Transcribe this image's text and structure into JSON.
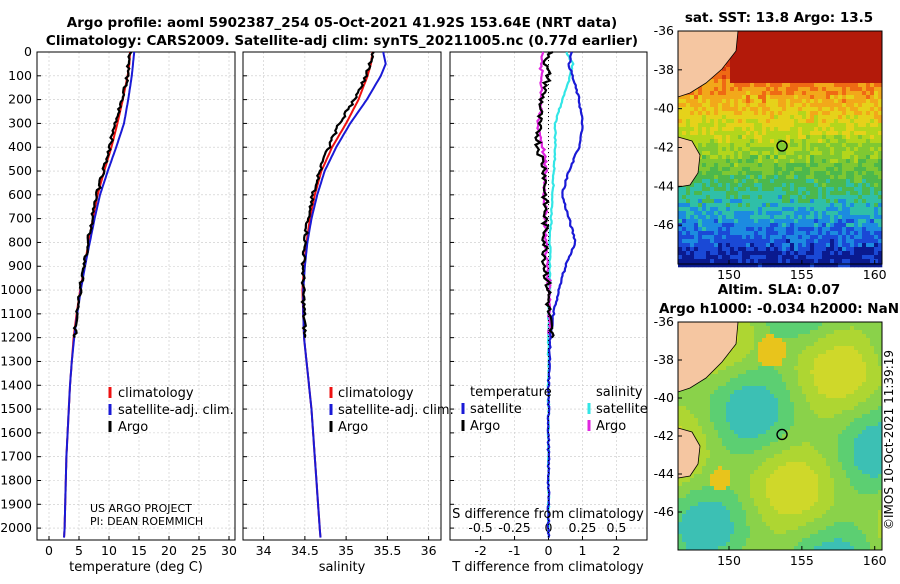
{
  "header": {
    "line1": "Argo profile: aoml 5902387_254 05-Oct-2021 41.92S 153.64E (NRT data)",
    "line2": "Climatology: CARS2009. Satellite-adj clim: synTS_20211005.nc (0.77d earlier)"
  },
  "colors": {
    "climatology": "#ee1111",
    "satellite": "#1a1ad6",
    "argo": "#000000",
    "sat_s": "#33e6e6",
    "argo_s": "#e026e0"
  },
  "chart_data": [
    {
      "id": "temperature",
      "type": "line",
      "xlabel": "temperature (deg C)",
      "ylabel": "",
      "xlim": [
        -2,
        31
      ],
      "ylim": [
        0,
        2050
      ],
      "xticks": [
        "0",
        "5",
        "10",
        "15",
        "20",
        "25",
        "30"
      ],
      "yticks": [
        "0",
        "100",
        "200",
        "300",
        "400",
        "500",
        "600",
        "700",
        "800",
        "900",
        "1000",
        "1100",
        "1200",
        "1300",
        "1400",
        "1500",
        "1600",
        "1700",
        "1800",
        "1900",
        "2000"
      ],
      "legend": [
        "climatology",
        "satellite-adj. clim.",
        "Argo"
      ],
      "annotation": [
        "US ARGO PROJECT",
        "PI: DEAN ROEMMICH"
      ],
      "series": [
        {
          "name": "climatology",
          "depth": [
            0,
            50,
            100,
            200,
            300,
            400,
            500,
            600,
            700,
            800,
            900,
            1000,
            1100,
            1200,
            1300,
            1400,
            1500,
            1600,
            1700,
            1800,
            1900,
            2000,
            2040
          ],
          "values": [
            13.5,
            13.4,
            13.1,
            12.3,
            11.4,
            10.4,
            9.2,
            8.1,
            7.3,
            6.6,
            5.9,
            5.2,
            4.6,
            4.1,
            3.8,
            3.5,
            3.3,
            3.1,
            2.9,
            2.8,
            2.7,
            2.6,
            2.5
          ]
        },
        {
          "name": "satellite-adj. clim.",
          "depth": [
            0,
            50,
            100,
            200,
            300,
            400,
            500,
            600,
            700,
            800,
            900,
            1000,
            1100,
            1200,
            1300,
            1400,
            1500,
            1600,
            1700,
            1800,
            1900,
            2000,
            2040
          ],
          "values": [
            14.2,
            14.0,
            13.8,
            13.2,
            12.5,
            11.2,
            9.8,
            8.5,
            7.6,
            6.8,
            6.0,
            5.3,
            4.7,
            4.2,
            3.8,
            3.5,
            3.3,
            3.1,
            2.9,
            2.8,
            2.7,
            2.6,
            2.5
          ]
        },
        {
          "name": "Argo",
          "depth": [
            0,
            50,
            100,
            200,
            300,
            400,
            500,
            600,
            700,
            800,
            900,
            1000,
            1100,
            1200
          ],
          "values": [
            13.6,
            13.3,
            13.1,
            12.1,
            11.1,
            10.1,
            9.1,
            8.0,
            7.2,
            6.5,
            5.8,
            5.2,
            4.6,
            4.3
          ]
        }
      ]
    },
    {
      "id": "salinity",
      "type": "line",
      "xlabel": "salinity",
      "ylabel": "",
      "xlim": [
        33.75,
        36.15
      ],
      "ylim": [
        0,
        2050
      ],
      "xticks": [
        "34",
        "34.5",
        "35",
        "35.5",
        "36"
      ],
      "legend": [
        "climatology",
        "satellite-adj. clim.",
        "Argo"
      ],
      "series": [
        {
          "name": "climatology",
          "depth": [
            0,
            50,
            100,
            200,
            300,
            400,
            500,
            600,
            700,
            800,
            900,
            1000,
            1100,
            1200,
            1300,
            1400,
            1500,
            1600,
            1700,
            1800,
            1900,
            2000,
            2040
          ],
          "values": [
            35.32,
            35.3,
            35.26,
            35.15,
            35.0,
            34.83,
            34.7,
            34.62,
            34.56,
            34.52,
            34.49,
            34.47,
            34.48,
            34.49,
            34.52,
            34.55,
            34.58,
            34.6,
            34.62,
            34.64,
            34.66,
            34.68,
            34.69
          ]
        },
        {
          "name": "satellite-adj. clim.",
          "depth": [
            0,
            50,
            100,
            200,
            300,
            400,
            500,
            600,
            700,
            800,
            900,
            1000,
            1100,
            1200,
            1300,
            1400,
            1500,
            1600,
            1700,
            1800,
            1900,
            2000,
            2040
          ],
          "values": [
            35.45,
            35.48,
            35.42,
            35.25,
            35.05,
            34.88,
            34.74,
            34.65,
            34.58,
            34.53,
            34.5,
            34.48,
            34.48,
            34.49,
            34.52,
            34.55,
            34.58,
            34.6,
            34.62,
            34.64,
            34.66,
            34.68,
            34.69
          ]
        },
        {
          "name": "Argo",
          "depth": [
            0,
            50,
            100,
            200,
            300,
            400,
            500,
            600,
            700,
            800,
            900,
            1000,
            1100,
            1200
          ],
          "values": [
            35.33,
            35.29,
            35.24,
            35.1,
            34.92,
            34.79,
            34.68,
            34.59,
            34.54,
            34.5,
            34.48,
            34.48,
            34.49,
            34.5
          ]
        }
      ]
    },
    {
      "id": "difference",
      "type": "line",
      "xlabel": "T difference from climatology",
      "x2label": "S difference from climatology",
      "xlim": [
        -2.9,
        2.9
      ],
      "ylim": [
        0,
        2050
      ],
      "xticks": [
        "-2",
        "-1",
        "0",
        "1",
        "2"
      ],
      "x2ticks": [
        "-0.5",
        "-0.25",
        "0",
        "0.25",
        "0.5"
      ],
      "legend_t_title": "temperature",
      "legend_s_title": "salinity",
      "legend": [
        "satellite",
        "Argo",
        "satellite",
        "Argo"
      ],
      "series": [
        {
          "name": "T satellite",
          "depth": [
            0,
            50,
            100,
            150,
            200,
            300,
            400,
            500,
            600,
            700,
            800,
            900,
            1000,
            1100,
            1200,
            1400,
            1600,
            1800,
            2000,
            2040
          ],
          "values": [
            0.7,
            0.6,
            0.7,
            0.8,
            0.9,
            1.0,
            0.9,
            0.6,
            0.4,
            0.6,
            0.8,
            0.5,
            0.3,
            0.15,
            0.05,
            0.0,
            0.0,
            0.0,
            0.0,
            0.0
          ]
        },
        {
          "name": "T Argo",
          "depth": [
            0,
            50,
            100,
            200,
            300,
            400,
            500,
            600,
            700,
            800,
            900,
            1000,
            1100,
            1200
          ],
          "values": [
            0.1,
            -0.1,
            0.0,
            -0.2,
            -0.3,
            -0.3,
            -0.1,
            -0.1,
            -0.1,
            -0.1,
            -0.1,
            0.0,
            0.0,
            0.1
          ]
        },
        {
          "name": "S satellite",
          "depth": [
            0,
            50,
            100,
            200,
            300,
            400,
            500,
            600,
            700,
            800,
            900,
            1000,
            1100,
            1200,
            1400,
            1600,
            1800,
            2000,
            2040
          ],
          "values": [
            0.13,
            0.18,
            0.16,
            0.1,
            0.05,
            0.05,
            0.04,
            0.03,
            0.02,
            0.01,
            0.01,
            0.01,
            0.0,
            0.0,
            0.0,
            0.0,
            0.0,
            0.0,
            0.0
          ]
        },
        {
          "name": "S Argo",
          "depth": [
            0,
            50,
            100,
            200,
            300,
            400,
            500,
            600,
            700,
            800,
            900,
            1000,
            1100,
            1200
          ],
          "values": [
            -0.03,
            -0.06,
            -0.05,
            -0.05,
            -0.08,
            -0.04,
            -0.02,
            -0.03,
            -0.02,
            -0.02,
            -0.01,
            0.01,
            0.01,
            0.01
          ]
        }
      ]
    },
    {
      "id": "sst_map",
      "type": "heatmap",
      "title": "sat. SST: 13.8 Argo: 13.5",
      "xticks": [
        "150",
        "155",
        "160"
      ],
      "yticks": [
        "-36",
        "-38",
        "-40",
        "-42",
        "-44",
        "-46"
      ],
      "xlim": [
        146.5,
        160.5
      ],
      "ylim": [
        -48,
        -36
      ],
      "marker": [
        153.64,
        -41.92
      ]
    },
    {
      "id": "sla_map",
      "type": "heatmap",
      "title1": "Altim. SLA: 0.07",
      "title2": "Argo h1000: -0.034 h2000: NaN",
      "xticks": [
        "150",
        "155",
        "160"
      ],
      "yticks": [
        "-36",
        "-38",
        "-40",
        "-42",
        "-44",
        "-46"
      ],
      "xlim": [
        146.5,
        160.5
      ],
      "ylim": [
        -48,
        -36
      ],
      "marker": [
        153.64,
        -41.92
      ]
    }
  ],
  "watermark": "©IMOS 10-Oct-2021 11:39:19"
}
